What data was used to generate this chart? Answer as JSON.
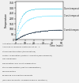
{
  "title": "",
  "xlabel": "Time (mins)",
  "ylabel": "Temperature",
  "xlim": [
    0,
    55
  ],
  "ylim": [
    0,
    350
  ],
  "yticks": [
    0,
    50,
    100,
    150,
    200,
    250,
    300,
    350
  ],
  "xticks": [
    0,
    10,
    20,
    30,
    40,
    50
  ],
  "oven_label": "Oven temperature",
  "crust_label": "Crust temperature",
  "crumb_label": "Crumb temperature",
  "oven_color": "#88ddee",
  "crust_color": "#aaeeff",
  "crumb_color": "#445566",
  "legend_items": [
    "Activation then death of yeast (ethyl fermentation)",
    "Amylase co-enzyme destroyed at 85 °C",
    "Starch gelatinisation (temperature)",
    "Gluten coagulation (protein formation/development)",
    "Gas expansion",
    "Dehydration and crust solidification",
    "starch degradation (dextrin degradation)",
    "Caramelisation",
    "Browning and roasting products",
    "(maillard products including Maillard reactions)"
  ],
  "background_color": "#f0f0f0",
  "plot_bg": "#ffffff"
}
